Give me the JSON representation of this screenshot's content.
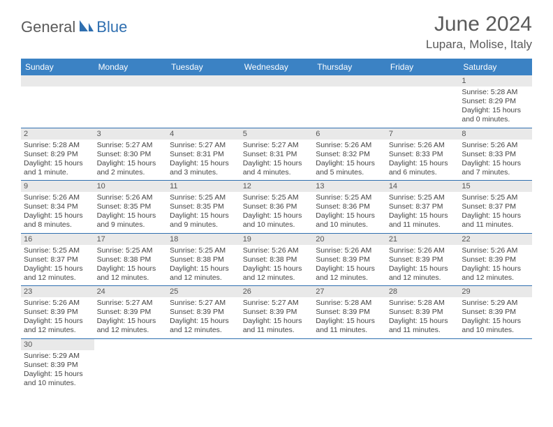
{
  "brand": {
    "part1": "General",
    "part2": "Blue"
  },
  "title": "June 2024",
  "location": "Lupara, Molise, Italy",
  "colors": {
    "header_bg": "#3b82c4",
    "header_text": "#ffffff",
    "rule": "#2f6fb0",
    "daynum_bg": "#e9e9e9",
    "brand_gray": "#5a5a5a",
    "brand_blue": "#2f6fb0"
  },
  "weekdays": [
    "Sunday",
    "Monday",
    "Tuesday",
    "Wednesday",
    "Thursday",
    "Friday",
    "Saturday"
  ],
  "weeks": [
    [
      null,
      null,
      null,
      null,
      null,
      null,
      {
        "n": "1",
        "sr": "Sunrise: 5:28 AM",
        "ss": "Sunset: 8:29 PM",
        "dl": "Daylight: 15 hours and 0 minutes."
      }
    ],
    [
      {
        "n": "2",
        "sr": "Sunrise: 5:28 AM",
        "ss": "Sunset: 8:29 PM",
        "dl": "Daylight: 15 hours and 1 minute."
      },
      {
        "n": "3",
        "sr": "Sunrise: 5:27 AM",
        "ss": "Sunset: 8:30 PM",
        "dl": "Daylight: 15 hours and 2 minutes."
      },
      {
        "n": "4",
        "sr": "Sunrise: 5:27 AM",
        "ss": "Sunset: 8:31 PM",
        "dl": "Daylight: 15 hours and 3 minutes."
      },
      {
        "n": "5",
        "sr": "Sunrise: 5:27 AM",
        "ss": "Sunset: 8:31 PM",
        "dl": "Daylight: 15 hours and 4 minutes."
      },
      {
        "n": "6",
        "sr": "Sunrise: 5:26 AM",
        "ss": "Sunset: 8:32 PM",
        "dl": "Daylight: 15 hours and 5 minutes."
      },
      {
        "n": "7",
        "sr": "Sunrise: 5:26 AM",
        "ss": "Sunset: 8:33 PM",
        "dl": "Daylight: 15 hours and 6 minutes."
      },
      {
        "n": "8",
        "sr": "Sunrise: 5:26 AM",
        "ss": "Sunset: 8:33 PM",
        "dl": "Daylight: 15 hours and 7 minutes."
      }
    ],
    [
      {
        "n": "9",
        "sr": "Sunrise: 5:26 AM",
        "ss": "Sunset: 8:34 PM",
        "dl": "Daylight: 15 hours and 8 minutes."
      },
      {
        "n": "10",
        "sr": "Sunrise: 5:26 AM",
        "ss": "Sunset: 8:35 PM",
        "dl": "Daylight: 15 hours and 9 minutes."
      },
      {
        "n": "11",
        "sr": "Sunrise: 5:25 AM",
        "ss": "Sunset: 8:35 PM",
        "dl": "Daylight: 15 hours and 9 minutes."
      },
      {
        "n": "12",
        "sr": "Sunrise: 5:25 AM",
        "ss": "Sunset: 8:36 PM",
        "dl": "Daylight: 15 hours and 10 minutes."
      },
      {
        "n": "13",
        "sr": "Sunrise: 5:25 AM",
        "ss": "Sunset: 8:36 PM",
        "dl": "Daylight: 15 hours and 10 minutes."
      },
      {
        "n": "14",
        "sr": "Sunrise: 5:25 AM",
        "ss": "Sunset: 8:37 PM",
        "dl": "Daylight: 15 hours and 11 minutes."
      },
      {
        "n": "15",
        "sr": "Sunrise: 5:25 AM",
        "ss": "Sunset: 8:37 PM",
        "dl": "Daylight: 15 hours and 11 minutes."
      }
    ],
    [
      {
        "n": "16",
        "sr": "Sunrise: 5:25 AM",
        "ss": "Sunset: 8:37 PM",
        "dl": "Daylight: 15 hours and 12 minutes."
      },
      {
        "n": "17",
        "sr": "Sunrise: 5:25 AM",
        "ss": "Sunset: 8:38 PM",
        "dl": "Daylight: 15 hours and 12 minutes."
      },
      {
        "n": "18",
        "sr": "Sunrise: 5:25 AM",
        "ss": "Sunset: 8:38 PM",
        "dl": "Daylight: 15 hours and 12 minutes."
      },
      {
        "n": "19",
        "sr": "Sunrise: 5:26 AM",
        "ss": "Sunset: 8:38 PM",
        "dl": "Daylight: 15 hours and 12 minutes."
      },
      {
        "n": "20",
        "sr": "Sunrise: 5:26 AM",
        "ss": "Sunset: 8:39 PM",
        "dl": "Daylight: 15 hours and 12 minutes."
      },
      {
        "n": "21",
        "sr": "Sunrise: 5:26 AM",
        "ss": "Sunset: 8:39 PM",
        "dl": "Daylight: 15 hours and 12 minutes."
      },
      {
        "n": "22",
        "sr": "Sunrise: 5:26 AM",
        "ss": "Sunset: 8:39 PM",
        "dl": "Daylight: 15 hours and 12 minutes."
      }
    ],
    [
      {
        "n": "23",
        "sr": "Sunrise: 5:26 AM",
        "ss": "Sunset: 8:39 PM",
        "dl": "Daylight: 15 hours and 12 minutes."
      },
      {
        "n": "24",
        "sr": "Sunrise: 5:27 AM",
        "ss": "Sunset: 8:39 PM",
        "dl": "Daylight: 15 hours and 12 minutes."
      },
      {
        "n": "25",
        "sr": "Sunrise: 5:27 AM",
        "ss": "Sunset: 8:39 PM",
        "dl": "Daylight: 15 hours and 12 minutes."
      },
      {
        "n": "26",
        "sr": "Sunrise: 5:27 AM",
        "ss": "Sunset: 8:39 PM",
        "dl": "Daylight: 15 hours and 11 minutes."
      },
      {
        "n": "27",
        "sr": "Sunrise: 5:28 AM",
        "ss": "Sunset: 8:39 PM",
        "dl": "Daylight: 15 hours and 11 minutes."
      },
      {
        "n": "28",
        "sr": "Sunrise: 5:28 AM",
        "ss": "Sunset: 8:39 PM",
        "dl": "Daylight: 15 hours and 11 minutes."
      },
      {
        "n": "29",
        "sr": "Sunrise: 5:29 AM",
        "ss": "Sunset: 8:39 PM",
        "dl": "Daylight: 15 hours and 10 minutes."
      }
    ],
    [
      {
        "n": "30",
        "sr": "Sunrise: 5:29 AM",
        "ss": "Sunset: 8:39 PM",
        "dl": "Daylight: 15 hours and 10 minutes."
      },
      null,
      null,
      null,
      null,
      null,
      null
    ]
  ]
}
